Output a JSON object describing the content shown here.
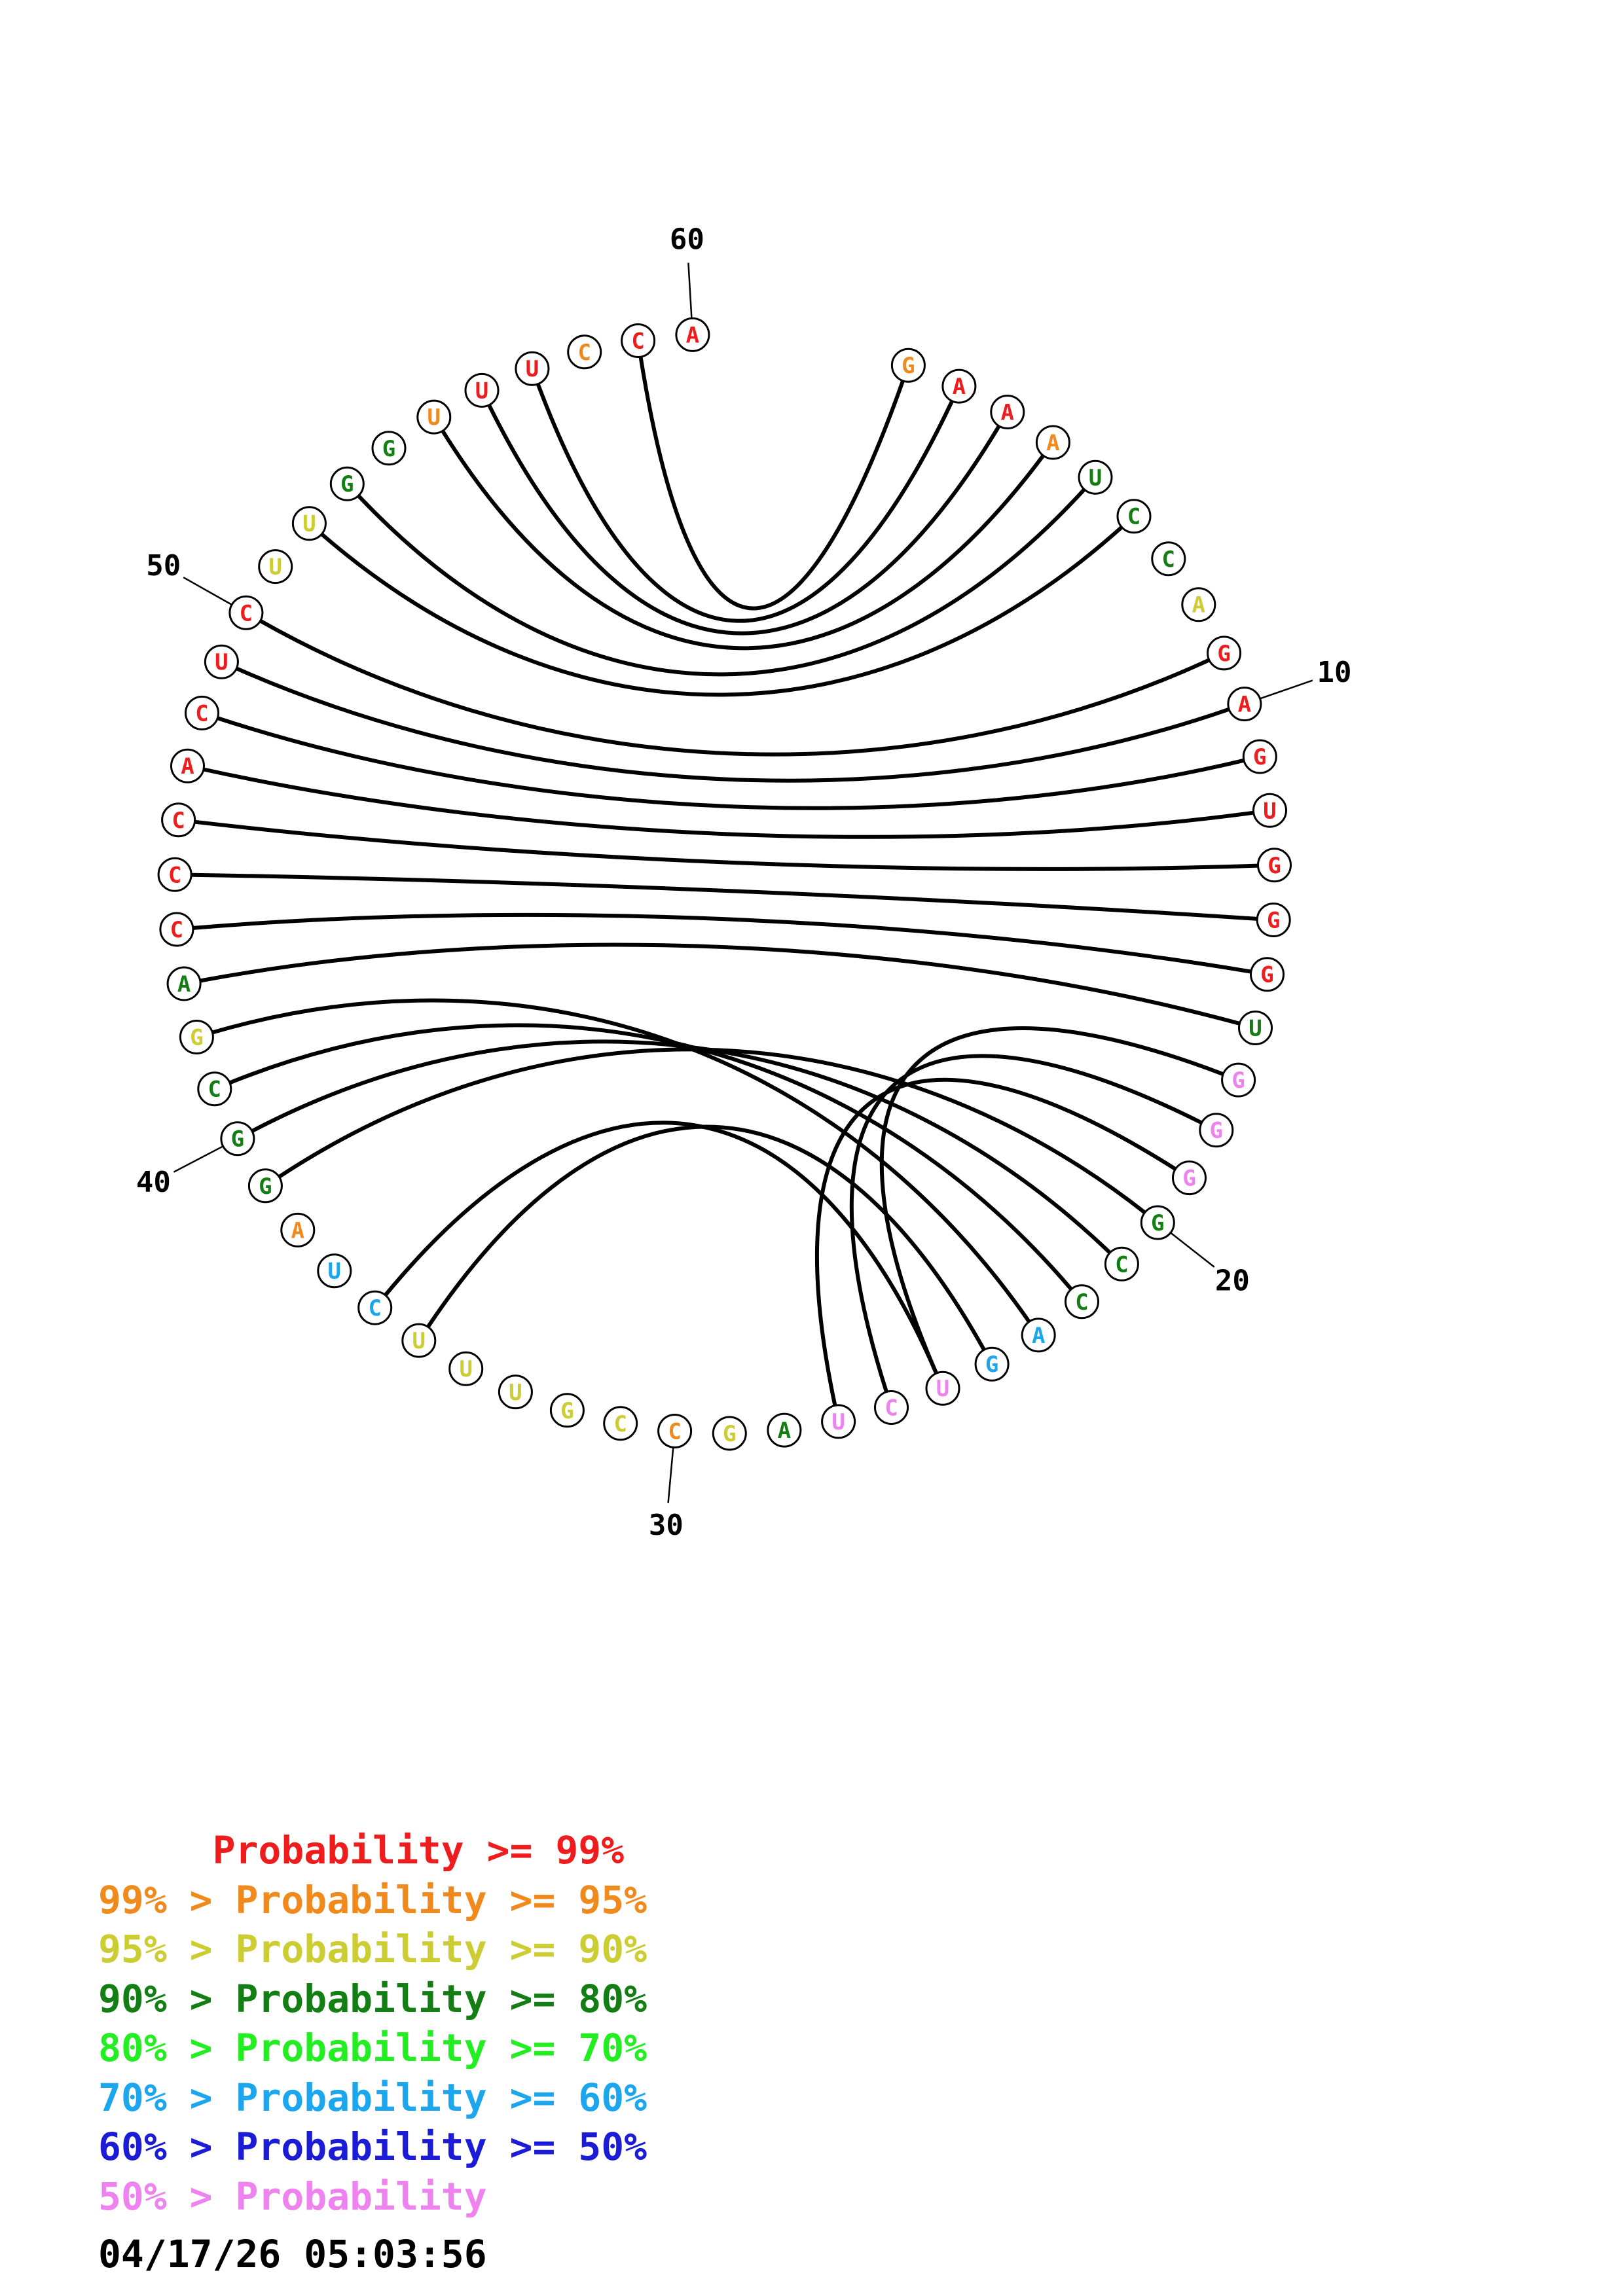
{
  "diagram": {
    "sequence": [
      "G",
      "A",
      "A",
      "A",
      "U",
      "C",
      "C",
      "A",
      "G",
      "A",
      "G",
      "U",
      "G",
      "G",
      "G",
      "U",
      "G",
      "G",
      "G",
      "G",
      "C",
      "C",
      "A",
      "G",
      "U",
      "C",
      "U",
      "A",
      "G",
      "C",
      "C",
      "G",
      "U",
      "U",
      "U",
      "C",
      "U",
      "A",
      "G",
      "G",
      "C",
      "G",
      "A",
      "C",
      "C",
      "C",
      "A",
      "C",
      "U",
      "C",
      "U",
      "U",
      "G",
      "G",
      "U",
      "U",
      "U",
      "C",
      "C",
      "A"
    ],
    "colors": [
      "orange",
      "red",
      "red",
      "orange",
      "darkgreen",
      "darkgreen",
      "darkgreen",
      "yellow",
      "red",
      "red",
      "red",
      "red",
      "red",
      "red",
      "red",
      "darkgreen",
      "pink",
      "pink",
      "pink",
      "darkgreen",
      "darkgreen",
      "darkgreen",
      "cyan",
      "cyan",
      "pink",
      "pink",
      "pink",
      "darkgreen",
      "yellow",
      "orange",
      "yellow",
      "yellow",
      "yellow",
      "yellow",
      "yellow",
      "cyan",
      "cyan",
      "orange",
      "darkgreen",
      "darkgreen",
      "darkgreen",
      "yellow",
      "darkgreen",
      "red",
      "red",
      "red",
      "red",
      "red",
      "red",
      "red",
      "yellow",
      "yellow",
      "darkgreen",
      "darkgreen",
      "orange",
      "red",
      "red",
      "orange",
      "red",
      "red"
    ],
    "pairs": [
      [
        1,
        59
      ],
      [
        2,
        57
      ],
      [
        3,
        56
      ],
      [
        4,
        55
      ],
      [
        5,
        53
      ],
      [
        6,
        52
      ],
      [
        9,
        50
      ],
      [
        10,
        49
      ],
      [
        11,
        48
      ],
      [
        12,
        47
      ],
      [
        13,
        46
      ],
      [
        14,
        45
      ],
      [
        15,
        44
      ],
      [
        16,
        43
      ],
      [
        17,
        25
      ],
      [
        18,
        26
      ],
      [
        19,
        27
      ],
      [
        20,
        39
      ],
      [
        21,
        40
      ],
      [
        22,
        41
      ],
      [
        23,
        42
      ],
      [
        24,
        35
      ],
      [
        25,
        36
      ]
    ],
    "tick_labels": [
      {
        "position": 10,
        "label": "10"
      },
      {
        "position": 20,
        "label": "20"
      },
      {
        "position": 30,
        "label": "30"
      },
      {
        "position": 40,
        "label": "40"
      },
      {
        "position": 50,
        "label": "50"
      },
      {
        "position": 60,
        "label": "60"
      }
    ]
  },
  "palette": {
    "red": "#ee1c1c",
    "orange": "#f08a1c",
    "yellow": "#cccc33",
    "darkgreen": "#137e13",
    "green": "#22ee22",
    "cyan": "#1ca6ee",
    "blue": "#1c1cd6",
    "pink": "#ee82ee"
  },
  "legend": [
    {
      "text": "     Probability >= 99%",
      "color": "#ee1c1c"
    },
    {
      "text": "99% > Probability >= 95%",
      "color": "#f08a1c"
    },
    {
      "text": "95% > Probability >= 90%",
      "color": "#cccc33"
    },
    {
      "text": "90% > Probability >= 80%",
      "color": "#137e13"
    },
    {
      "text": "80% > Probability >= 70%",
      "color": "#22ee22"
    },
    {
      "text": "70% > Probability >= 60%",
      "color": "#1ca6ee"
    },
    {
      "text": "60% > Probability >= 50%",
      "color": "#1c1cd6"
    },
    {
      "text": "50% > Probability",
      "color": "#ee82ee"
    }
  ],
  "timestamp": "04/17/26 05:03:56"
}
